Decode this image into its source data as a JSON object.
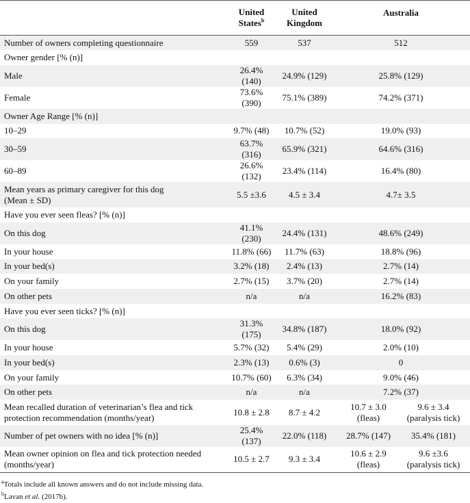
{
  "table": {
    "header": {
      "us": {
        "line1": "United",
        "line2": "States",
        "note": "b"
      },
      "uk": {
        "line1": "United",
        "line2": "Kingdom"
      },
      "au": "Australia"
    },
    "rows": [
      {
        "label": "Number of owners completing questionnaire",
        "us": "559",
        "uk": "537",
        "au": "512"
      },
      {
        "label": "Owner gender [% (n)]"
      },
      {
        "label": "Male",
        "us": "26.4% (140)",
        "uk": "24.9% (129)",
        "au": "25.8% (129)"
      },
      {
        "label": "Female",
        "us": "73.6% (390)",
        "uk": "75.1% (389)",
        "au": "74.2% (371)"
      },
      {
        "label": "Owner Age Range [% (n)]"
      },
      {
        "label": "10–29",
        "us": "9.7% (48)",
        "uk": "10.7% (52)",
        "au": "19.0% (93)"
      },
      {
        "label": "30–59",
        "us": "63.7% (316)",
        "uk": "65.9% (321)",
        "au": "64.6% (316)"
      },
      {
        "label": "60–89",
        "us": "26.6% (132)",
        "uk": "23.4% (114)",
        "au": "16.4% (80)"
      },
      {
        "label": [
          "Mean years as primary caregiver for this dog",
          "(Mean ± SD)"
        ],
        "us": "5.5 ±3.6",
        "uk": "4.5 ± 3.4",
        "au": "4.7± 3.5"
      },
      {
        "label": "Have you ever seen fleas? [% (n)]"
      },
      {
        "label": "On this dog",
        "us": "41.1% (230)",
        "uk": "24.4% (131)",
        "au": "48.6% (249)"
      },
      {
        "label": "In your house",
        "us": "11.8% (66)",
        "uk": "11.7% (63)",
        "au": "18.8% (96)"
      },
      {
        "label": "In your bed(s)",
        "us": "3.2% (18)",
        "uk": "2.4% (13)",
        "au": "2.7% (14)"
      },
      {
        "label": "On your family",
        "us": "2.7% (15)",
        "uk": "3.7% (20)",
        "au": "2.7% (14)"
      },
      {
        "label": "On other pets",
        "us": "n/a",
        "uk": "n/a",
        "au": "16.2% (83)"
      },
      {
        "label": "Have you ever seen ticks? [% (n)]"
      },
      {
        "label": "On this dog",
        "us": "31.3% (175)",
        "uk": "34.8% (187)",
        "au": "18.0% (92)"
      },
      {
        "label": "In your house",
        "us": "5.7% (32)",
        "uk": "5.4% (29)",
        "au": "2.0% (10)"
      },
      {
        "label": "In your bed(s)",
        "us": "2.3% (13)",
        "uk": "0.6% (3)",
        "au": "0"
      },
      {
        "label": "On your family",
        "us": "10.7% (60)",
        "uk": "6.3% (34)",
        "au": "9.0% (46)"
      },
      {
        "label": "On other pets",
        "us": "n/a",
        "uk": "n/a",
        "au": "7.2% (37)"
      },
      {
        "label": [
          "Mean recalled duration of veterinarian’s flea and tick",
          "protection recommendation (months/year)"
        ],
        "us": "10.8 ± 2.8",
        "uk": "8.7 ± 4.2",
        "au": [
          [
            "10.7 ± 3.0",
            "(fleas)"
          ],
          [
            "9.6 ± 3.4",
            "(paralysis tick)"
          ]
        ]
      },
      {
        "label": "Number of pet owners with no idea [% (n)]",
        "us": "25.4% (137)",
        "uk": "22.0% (118)",
        "au": [
          [
            "28.7% (147)"
          ],
          [
            "35.4% (181)"
          ]
        ]
      },
      {
        "label": [
          "Mean owner opinion on flea and tick protection needed",
          "(months/year)"
        ],
        "us": "10.5 ± 2.7",
        "uk": "9.3 ± 3.4",
        "au": [
          [
            "10.6 ± 2.9",
            "(fleas)"
          ],
          [
            "9.6 ±3.6",
            "(paralysis tick)"
          ]
        ]
      }
    ],
    "footnotes": [
      {
        "mark": "a",
        "text": "Totals include all known answers and do not include missing data."
      },
      {
        "mark": "b",
        "text": "Lavan ",
        "italic": "et al.",
        "rest": " (2017b)."
      }
    ]
  }
}
